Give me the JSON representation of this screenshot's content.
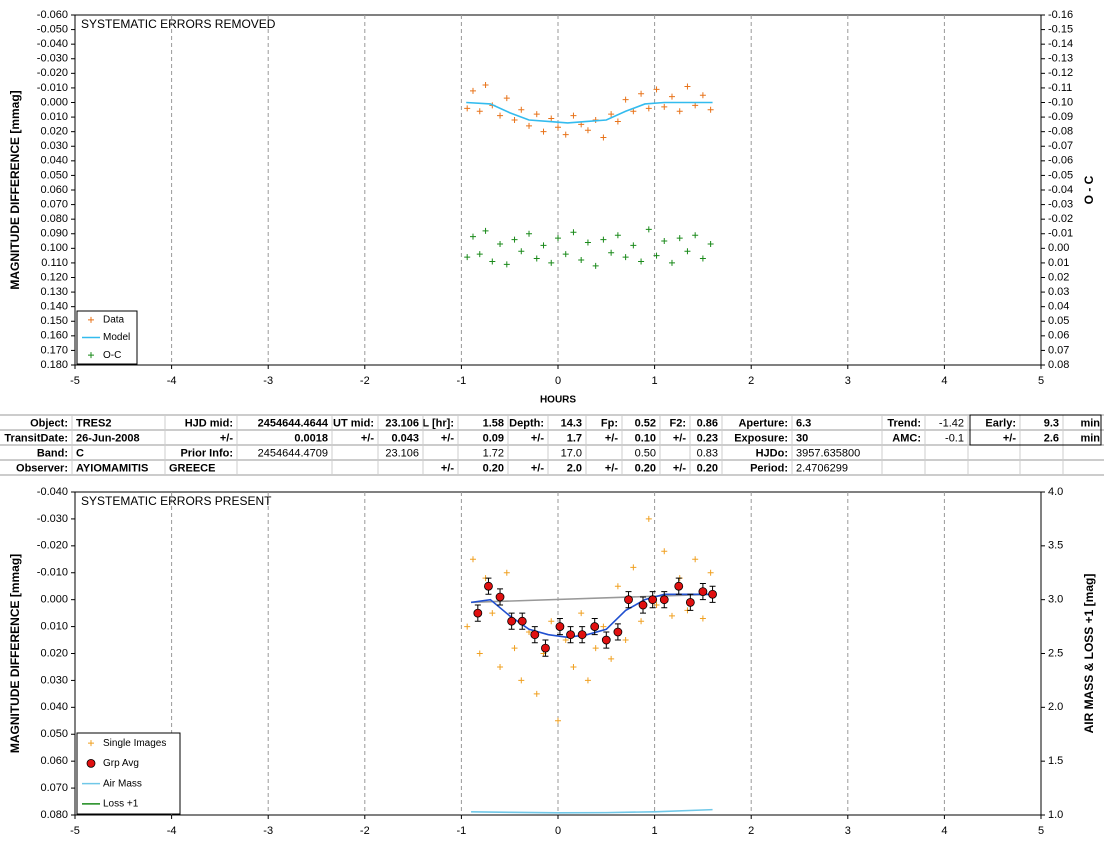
{
  "chart_data": [
    {
      "type": "scatter",
      "annotation": "SYSTEMATIC ERRORS REMOVED",
      "xlabel": "HOURS",
      "ylabel": "MAGNITUDE DIFFERENCE [mmag]",
      "y2label": "O - C",
      "xlim": [
        -5,
        5
      ],
      "xticks": [
        -5,
        -4,
        -3,
        -2,
        -1,
        0,
        1,
        2,
        3,
        4,
        5
      ],
      "ylim": [
        -0.06,
        0.18
      ],
      "y_inverted": true,
      "yticks": [
        {
          "value": -0.06,
          "label": "-0.060"
        },
        {
          "value": -0.05,
          "label": "-0.050"
        },
        {
          "value": -0.04,
          "label": "-0.040"
        },
        {
          "value": -0.03,
          "label": "-0.030"
        },
        {
          "value": -0.02,
          "label": "-0.020"
        },
        {
          "value": -0.01,
          "label": "-0.010"
        },
        {
          "value": 0,
          "label": "0.000"
        },
        {
          "value": 0.01,
          "label": "0.010"
        },
        {
          "value": 0.02,
          "label": "0.020"
        },
        {
          "value": 0.03,
          "label": "0.030"
        },
        {
          "value": 0.04,
          "label": "0.040"
        },
        {
          "value": 0.05,
          "label": "0.050"
        },
        {
          "value": 0.06,
          "label": "0.060"
        },
        {
          "value": 0.07,
          "label": "0.070"
        },
        {
          "value": 0.08,
          "label": "0.080"
        },
        {
          "value": 0.09,
          "label": "0.090"
        },
        {
          "value": 0.1,
          "label": "0.100"
        },
        {
          "value": 0.11,
          "label": "0.110"
        },
        {
          "value": 0.12,
          "label": "0.120"
        },
        {
          "value": 0.13,
          "label": "0.130"
        },
        {
          "value": 0.14,
          "label": "0.140"
        },
        {
          "value": 0.15,
          "label": "0.150"
        },
        {
          "value": 0.16,
          "label": "0.160"
        },
        {
          "value": 0.17,
          "label": "0.170"
        },
        {
          "value": 0.18,
          "label": "0.180"
        }
      ],
      "y2lim": [
        -0.16,
        0.08
      ],
      "y2_inverted": true,
      "y2ticks": [
        -0.16,
        -0.15,
        -0.14,
        -0.13,
        -0.12,
        -0.11,
        {
          "value": -0.1,
          "label": "-0.10"
        },
        -0.09,
        -0.08,
        -0.07,
        -0.06,
        -0.05,
        -0.04,
        -0.03,
        -0.02,
        -0.01,
        {
          "value": 0,
          "label": "0.00"
        },
        0.01,
        0.02,
        0.03,
        0.04,
        0.05,
        0.06,
        0.07,
        0.08
      ],
      "grid": "x",
      "legend": "lower left",
      "series": [
        {
          "name": "Data",
          "color": "#e8731a",
          "marker": "+",
          "x": [
            -0.94,
            -0.88,
            -0.81,
            -0.75,
            -0.68,
            -0.6,
            -0.53,
            -0.45,
            -0.38,
            -0.3,
            -0.22,
            -0.15,
            -0.07,
            0.0,
            0.08,
            0.16,
            0.24,
            0.31,
            0.39,
            0.47,
            0.55,
            0.62,
            0.7,
            0.78,
            0.86,
            0.94,
            1.02,
            1.1,
            1.18,
            1.26,
            1.34,
            1.42,
            1.5,
            1.58
          ],
          "values": [
            0.004,
            -0.008,
            0.006,
            -0.012,
            0.002,
            0.009,
            -0.003,
            0.012,
            0.005,
            0.016,
            0.008,
            0.02,
            0.011,
            0.017,
            0.022,
            0.009,
            0.015,
            0.019,
            0.012,
            0.024,
            0.008,
            0.013,
            -0.002,
            0.006,
            -0.006,
            0.004,
            -0.009,
            0.003,
            -0.004,
            0.006,
            -0.011,
            0.002,
            -0.005,
            0.005
          ]
        },
        {
          "name": "Model",
          "color": "#33bbee",
          "marker": "line",
          "x": [
            -0.95,
            -0.7,
            -0.5,
            -0.3,
            -0.1,
            0.1,
            0.3,
            0.5,
            0.7,
            0.9,
            1.1,
            1.6
          ],
          "values": [
            0.0,
            0.001,
            0.007,
            0.012,
            0.013,
            0.014,
            0.013,
            0.012,
            0.006,
            0.001,
            0.0,
            0.0
          ]
        },
        {
          "name": "O-C",
          "color": "#1a8a1a",
          "marker": "+",
          "axis": "y2",
          "x": [
            -0.94,
            -0.88,
            -0.81,
            -0.75,
            -0.68,
            -0.6,
            -0.53,
            -0.45,
            -0.38,
            -0.3,
            -0.22,
            -0.15,
            -0.07,
            0.0,
            0.08,
            0.16,
            0.24,
            0.31,
            0.39,
            0.47,
            0.55,
            0.62,
            0.7,
            0.78,
            0.86,
            0.94,
            1.02,
            1.1,
            1.18,
            1.26,
            1.34,
            1.42,
            1.5,
            1.58
          ],
          "values": [
            0.006,
            -0.008,
            0.004,
            -0.012,
            0.009,
            -0.003,
            0.011,
            -0.006,
            0.002,
            -0.01,
            0.007,
            -0.002,
            0.01,
            -0.007,
            0.004,
            -0.011,
            0.008,
            -0.004,
            0.012,
            -0.006,
            0.003,
            -0.009,
            0.006,
            -0.002,
            0.009,
            -0.013,
            0.005,
            -0.005,
            0.01,
            -0.007,
            0.002,
            -0.009,
            0.007,
            -0.003
          ]
        }
      ]
    },
    {
      "type": "scatter",
      "annotation": "SYSTEMATIC ERRORS PRESENT",
      "ylabel": "MAGNITUDE DIFFERENCE [mmag]",
      "y2label": "AIR MASS & LOSS +1 [mag]",
      "xlim": [
        -5,
        5
      ],
      "xticks": [
        -5,
        -4,
        -3,
        -2,
        -1,
        0,
        1,
        2,
        3,
        4,
        5
      ],
      "ylim": [
        -0.04,
        0.08
      ],
      "y_inverted": true,
      "yticks": [
        {
          "value": -0.04,
          "label": "-0.040"
        },
        {
          "value": -0.03,
          "label": "-0.030"
        },
        {
          "value": -0.02,
          "label": "-0.020"
        },
        {
          "value": -0.01,
          "label": "-0.010"
        },
        {
          "value": 0,
          "label": "0.000"
        },
        {
          "value": 0.01,
          "label": "0.010"
        },
        {
          "value": 0.02,
          "label": "0.020"
        },
        {
          "value": 0.03,
          "label": "0.030"
        },
        {
          "value": 0.04,
          "label": "0.040"
        },
        {
          "value": 0.05,
          "label": "0.050"
        },
        {
          "value": 0.06,
          "label": "0.060"
        },
        {
          "value": 0.07,
          "label": "0.070"
        },
        {
          "value": 0.08,
          "label": "0.080"
        }
      ],
      "y2lim": [
        1,
        4
      ],
      "y2_inverted": false,
      "y2ticks": [
        {
          "value": 1,
          "label": "1.0"
        },
        1.5,
        {
          "value": 2,
          "label": "2.0"
        },
        2.5,
        {
          "value": 3,
          "label": "3.0"
        },
        3.5,
        {
          "value": 4,
          "label": "4.0"
        }
      ],
      "grid": "x",
      "legend": "lower left",
      "series": [
        {
          "name": "Single Images",
          "color": "#f0a020",
          "marker": "+",
          "x": [
            -0.94,
            -0.88,
            -0.81,
            -0.75,
            -0.68,
            -0.6,
            -0.53,
            -0.45,
            -0.38,
            -0.3,
            -0.22,
            -0.15,
            -0.07,
            0.0,
            0.08,
            0.16,
            0.24,
            0.31,
            0.39,
            0.47,
            0.55,
            0.62,
            0.7,
            0.78,
            0.86,
            0.94,
            1.02,
            1.1,
            1.18,
            1.26,
            1.34,
            1.42,
            1.5,
            1.58
          ],
          "values": [
            0.01,
            -0.015,
            0.02,
            -0.008,
            0.005,
            0.025,
            -0.01,
            0.018,
            0.03,
            0.012,
            0.035,
            0.02,
            0.008,
            0.045,
            0.015,
            0.025,
            0.005,
            0.03,
            0.018,
            0.01,
            0.022,
            -0.005,
            0.015,
            -0.012,
            0.008,
            -0.03,
            0.002,
            -0.018,
            0.006,
            -0.008,
            0.004,
            -0.015,
            0.007,
            -0.01
          ]
        },
        {
          "color": "#999999",
          "marker": "line",
          "x": [
            -0.9,
            1.6
          ],
          "values": [
            0.001,
            -0.002
          ]
        },
        {
          "color": "#2050d0",
          "marker": "line",
          "x": [
            -0.9,
            -0.7,
            -0.5,
            -0.3,
            -0.1,
            0.1,
            0.3,
            0.5,
            0.7,
            0.9,
            1.1,
            1.6
          ],
          "values": [
            0.001,
            0.0,
            0.006,
            0.011,
            0.013,
            0.014,
            0.013,
            0.011,
            0.004,
            0.0,
            -0.002,
            -0.002
          ]
        },
        {
          "name": "Grp Avg",
          "color": "#e01010",
          "marker": "o",
          "x": [
            -0.83,
            -0.72,
            -0.6,
            -0.48,
            -0.37,
            -0.24,
            -0.13,
            0.02,
            0.13,
            0.25,
            0.38,
            0.5,
            0.62,
            0.73,
            0.88,
            0.98,
            1.1,
            1.25,
            1.37,
            1.5,
            1.6
          ],
          "values": [
            0.005,
            -0.005,
            -0.001,
            0.008,
            0.008,
            0.013,
            0.018,
            0.01,
            0.013,
            0.013,
            0.01,
            0.015,
            0.012,
            0.0,
            0.002,
            0.0,
            0.0,
            -0.005,
            0.001,
            -0.003,
            -0.002
          ],
          "errors": [
            0.003,
            0.003,
            0.003,
            0.003,
            0.003,
            0.003,
            0.003,
            0.003,
            0.003,
            0.003,
            0.003,
            0.003,
            0.003,
            0.003,
            0.003,
            0.003,
            0.003,
            0.003,
            0.003,
            0.003,
            0.003
          ]
        },
        {
          "name": "Air Mass",
          "color": "#70c8e8",
          "marker": "line",
          "axis": "y2",
          "x": [
            -0.9,
            -0.5,
            0,
            0.5,
            1.0,
            1.6
          ],
          "values": [
            1.03,
            1.025,
            1.02,
            1.022,
            1.03,
            1.05
          ]
        },
        {
          "name": "Loss +1",
          "color": "#1a8a1a",
          "marker": "line",
          "axis": "y2",
          "x": [],
          "values": []
        }
      ]
    }
  ],
  "table": {
    "rows": [
      [
        "Object:",
        "TRES2",
        "HJD mid:",
        "2454644.4644",
        "UT mid:",
        "23.106",
        "L [hr]:",
        "1.58",
        "Depth:",
        "14.3",
        "Fp:",
        "0.52",
        "F2:",
        "0.86",
        "Aperture:",
        "6.3",
        "Trend:",
        "-1.42",
        "Early:",
        "9.3",
        "min"
      ],
      [
        "TransitDate:",
        "26-Jun-2008",
        "+/-",
        "0.0018",
        "+/-",
        "0.043",
        "+/-",
        "0.09",
        "+/-",
        "1.7",
        "+/-",
        "0.10",
        "+/-",
        "0.23",
        "Exposure:",
        "30",
        "AMC:",
        "-0.1",
        "+/-",
        "2.6",
        "min"
      ],
      [
        "Band:",
        "C",
        "Prior Info:",
        "2454644.4709",
        null,
        "23.106",
        null,
        "1.72",
        null,
        "17.0",
        null,
        "0.50",
        null,
        "0.83",
        "HJDo:",
        "3957.635800",
        null,
        null,
        null,
        null,
        null
      ],
      [
        "Observer:",
        "AYIOMAMITIS",
        "GREECE",
        null,
        null,
        null,
        "+/-",
        "0.20",
        "+/-",
        "2.0",
        "+/-",
        "0.20",
        "+/-",
        "0.20",
        "Period:",
        "2.4706299",
        null,
        null,
        null,
        null,
        null
      ]
    ]
  }
}
